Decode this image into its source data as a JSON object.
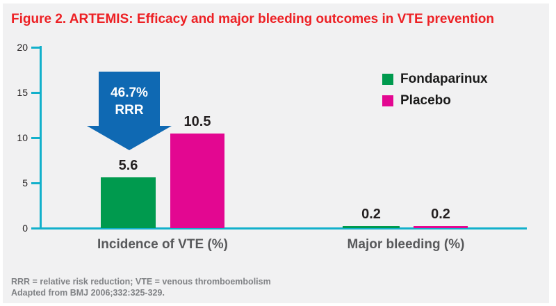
{
  "title": "Figure 2. ARTEMIS: Efficacy and major bleeding outcomes in VTE prevention",
  "colors": {
    "panel_background": "#f1f1f2",
    "title_red": "#ed2024",
    "axis_cyan": "#12b0cb",
    "fondaparinux_green": "#009a4e",
    "placebo_magenta": "#e30791",
    "arrow_blue": "#0f69b3",
    "category_label_gray": "#58595b",
    "footnote_gray": "#808285",
    "value_label_black": "#231f20"
  },
  "annotation": {
    "line1": "46.7%",
    "line2": "RRR"
  },
  "chart_data": {
    "type": "bar",
    "categories": [
      "Incidence of VTE (%)",
      "Major bleeding (%)"
    ],
    "series": [
      {
        "name": "Fondaparinux",
        "color": "#009a4e",
        "values": [
          5.6,
          0.2
        ],
        "labels": [
          "5.6",
          "0.2"
        ]
      },
      {
        "name": "Placebo",
        "color": "#e30791",
        "values": [
          10.5,
          0.2
        ],
        "labels": [
          "10.5",
          "0.2"
        ]
      }
    ],
    "ylim": [
      0,
      20
    ],
    "yticks": [
      0,
      5,
      10,
      15,
      20
    ],
    "grid": false,
    "legend_position": "upper right",
    "annotations": [
      "46.7% RRR relative risk reduction arrow over Fondaparinux VTE bar"
    ]
  },
  "footnotes": {
    "line1": "RRR = relative risk reduction; VTE = venous thromboembolism",
    "line2": "Adapted from BMJ 2006;332:325-329."
  }
}
